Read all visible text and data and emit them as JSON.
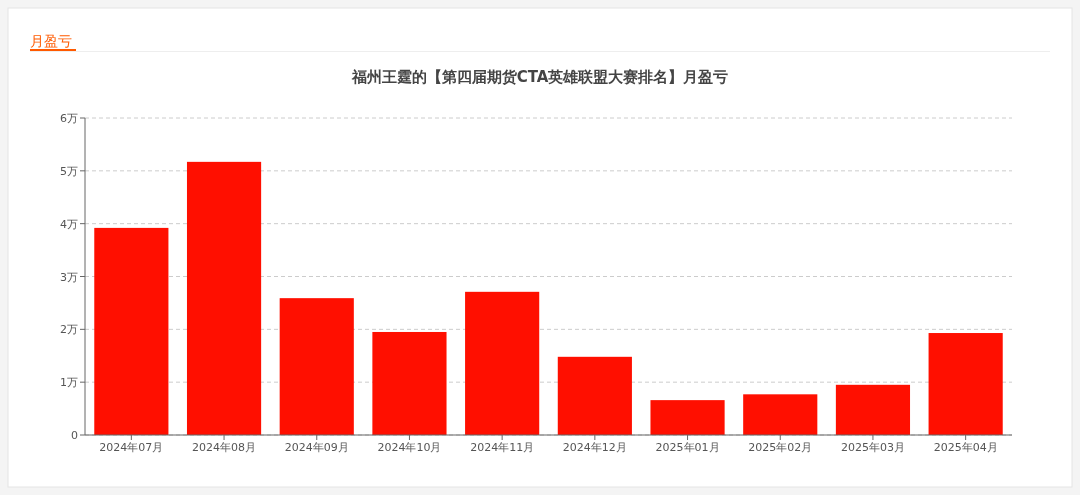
{
  "chart_data": {
    "type": "bar",
    "title": "福州王霆的【第四届期货CTA英雄联盟大赛排名】月盈亏",
    "subtitle": "月盈亏",
    "categories": [
      "2024年07月",
      "2024年08月",
      "2024年09月",
      "2024年10月",
      "2024年11月",
      "2024年12月",
      "2025年01月",
      "2025年02月",
      "2025年03月",
      "2025年04月"
    ],
    "values": [
      3.92,
      5.17,
      2.59,
      1.95,
      2.71,
      1.48,
      0.66,
      0.77,
      0.95,
      1.93
    ],
    "color": "#ff0f00",
    "ylim": [
      0,
      6
    ],
    "yticks": [
      0,
      {
        "value": 1,
        "label": "1万"
      },
      {
        "value": 2,
        "label": "2万"
      },
      {
        "value": 3,
        "label": "3万"
      },
      {
        "value": 4,
        "label": "4万"
      },
      {
        "value": 5,
        "label": "5万"
      },
      {
        "value": 6,
        "label": "6万"
      }
    ],
    "grid": "y"
  }
}
